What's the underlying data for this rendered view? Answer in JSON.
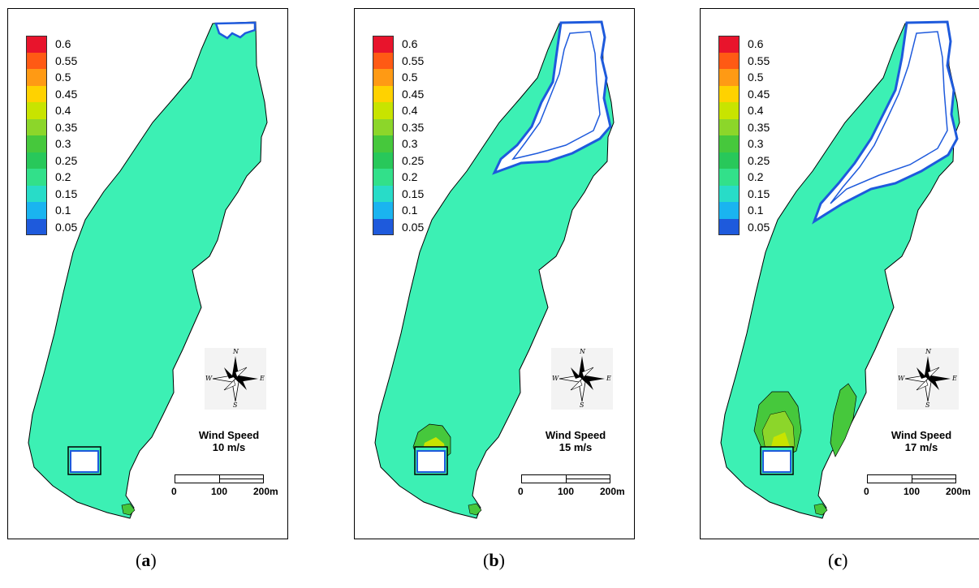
{
  "legend": {
    "levels": [
      "0.6",
      "0.55",
      "0.5",
      "0.45",
      "0.4",
      "0.35",
      "0.3",
      "0.25",
      "0.2",
      "0.15",
      "0.1",
      "0.05"
    ],
    "colors": [
      "#e8142c",
      "#ff5a14",
      "#ff9a14",
      "#ffd200",
      "#c8e400",
      "#8cd62a",
      "#46c83c",
      "#28c85a",
      "#32e08a",
      "#28dcc8",
      "#1ab4f0",
      "#1e5adc"
    ]
  },
  "panels": [
    {
      "id": "a",
      "caption_letter": "a",
      "wind_label": "Wind Speed",
      "wind_value": "10 m/s"
    },
    {
      "id": "b",
      "caption_letter": "b",
      "wind_label": "Wind Speed",
      "wind_value": "15 m/s"
    },
    {
      "id": "c",
      "caption_letter": "c",
      "wind_label": "Wind Speed",
      "wind_value": "17 m/s"
    }
  ],
  "compass": {
    "n": "N",
    "s": "S",
    "e": "E",
    "w": "W"
  },
  "scale": {
    "t0": "0",
    "t1": "100",
    "t2": "200m"
  },
  "caption_parts": {
    "open": "(",
    "close": ")"
  },
  "colors": {
    "water": "#3cf0b4",
    "dry": "#ffffff",
    "shoreline": "#000000",
    "blue_edge": "#1e5adc"
  }
}
